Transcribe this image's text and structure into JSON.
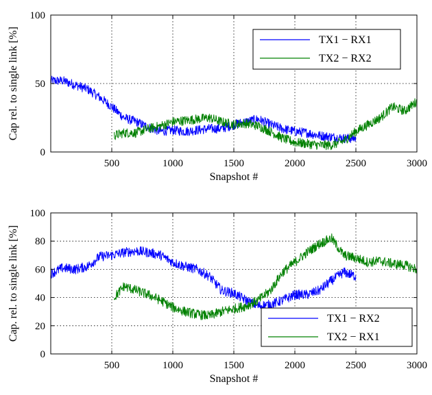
{
  "chart_data": [
    {
      "type": "line",
      "title": "",
      "xlabel": "Snapshot #",
      "ylabel": "Cap rel. to single link [%]",
      "xlim": [
        0,
        3000
      ],
      "ylim": [
        0,
        100
      ],
      "xticks": [
        500,
        1000,
        1500,
        2000,
        2500,
        3000
      ],
      "yticks": [
        0,
        50,
        100
      ],
      "grid": true,
      "legend_position": "top-right",
      "series": [
        {
          "name": "TX1 − RX1",
          "color": "#0000ff",
          "x": [
            0,
            100,
            200,
            300,
            400,
            500,
            600,
            700,
            800,
            900,
            1000,
            1100,
            1200,
            1300,
            1400,
            1500,
            1600,
            1700,
            1800,
            1900,
            2000,
            2100,
            2200,
            2300,
            2400,
            2500
          ],
          "y": [
            52,
            52,
            49,
            46,
            40,
            33,
            25,
            22,
            18,
            15,
            16,
            15,
            16,
            17,
            17,
            20,
            22,
            24,
            20,
            17,
            15,
            14,
            12,
            11,
            10,
            10
          ]
        },
        {
          "name": "TX2 − RX2",
          "color": "#008000",
          "x": [
            520,
            600,
            700,
            800,
            900,
            1000,
            1100,
            1200,
            1300,
            1400,
            1500,
            1600,
            1700,
            1800,
            1900,
            2000,
            2100,
            2200,
            2300,
            2400,
            2500,
            2600,
            2700,
            2800,
            2900,
            3000
          ],
          "y": [
            12,
            14,
            14,
            17,
            19,
            22,
            23,
            24,
            25,
            22,
            20,
            21,
            19,
            15,
            10,
            7,
            6,
            5,
            5,
            8,
            15,
            20,
            25,
            33,
            30,
            37
          ]
        }
      ]
    },
    {
      "type": "line",
      "title": "",
      "xlabel": "Snapshot #",
      "ylabel": "Cap. rel. to single link [%]",
      "xlim": [
        0,
        3000
      ],
      "ylim": [
        0,
        100
      ],
      "xticks": [
        500,
        1000,
        1500,
        2000,
        2500,
        3000
      ],
      "yticks": [
        0,
        20,
        40,
        60,
        80,
        100
      ],
      "grid": true,
      "legend_position": "bottom-right",
      "series": [
        {
          "name": "TX1 − RX2",
          "color": "#0000ff",
          "x": [
            0,
            100,
            200,
            300,
            400,
            500,
            600,
            700,
            800,
            900,
            1000,
            1100,
            1200,
            1300,
            1400,
            1500,
            1600,
            1700,
            1800,
            1900,
            2000,
            2100,
            2200,
            2300,
            2400,
            2500
          ],
          "y": [
            57,
            61,
            60,
            62,
            69,
            70,
            72,
            73,
            72,
            70,
            65,
            62,
            60,
            55,
            45,
            43,
            38,
            34,
            35,
            38,
            42,
            42,
            45,
            52,
            58,
            55
          ]
        },
        {
          "name": "TX2 − RX1",
          "color": "#008000",
          "x": [
            520,
            600,
            700,
            800,
            900,
            1000,
            1100,
            1200,
            1300,
            1400,
            1500,
            1600,
            1700,
            1800,
            1900,
            2000,
            2100,
            2200,
            2300,
            2400,
            2500,
            2600,
            2700,
            2800,
            2900,
            3000
          ],
          "y": [
            40,
            48,
            45,
            42,
            38,
            33,
            30,
            28,
            27,
            30,
            32,
            34,
            38,
            45,
            58,
            65,
            72,
            78,
            82,
            70,
            68,
            65,
            66,
            64,
            63,
            60
          ]
        }
      ]
    }
  ]
}
